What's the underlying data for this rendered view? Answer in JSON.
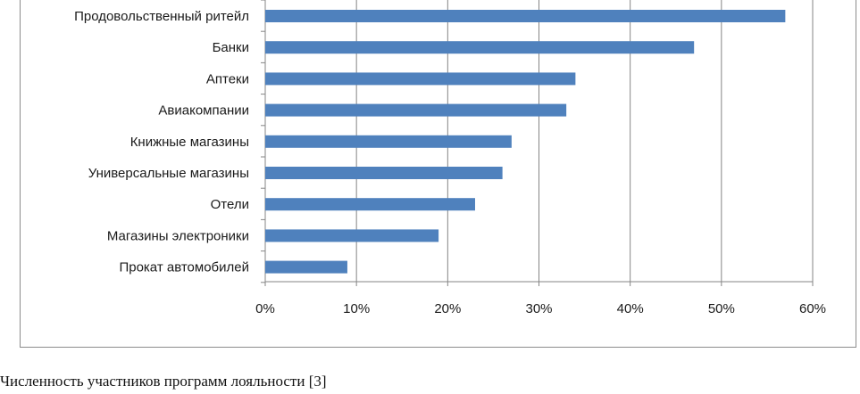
{
  "caption": "Численность участников программ лояльности [3]",
  "colors": {
    "bar": "#4F81BD",
    "gridline": "#868686",
    "axis": "#868686"
  },
  "chart_data": {
    "type": "bar",
    "orientation": "horizontal",
    "categories": [
      "Продовольственный ритейл",
      "Банки",
      "Аптеки",
      "Авиакомпании",
      "Книжные магазины",
      "Универсальные магазины",
      "Отели",
      "Магазины электроники",
      "Прокат автомобилей"
    ],
    "values": [
      57,
      47,
      34,
      33,
      27,
      26,
      23,
      19,
      9
    ],
    "xlim": [
      0,
      60
    ],
    "xticks": [
      0,
      10,
      20,
      30,
      40,
      50,
      60
    ],
    "xtick_labels": [
      "0%",
      "10%",
      "20%",
      "30%",
      "40%",
      "50%",
      "60%"
    ],
    "grid": true,
    "legend": false,
    "title": "",
    "xlabel": "",
    "ylabel": ""
  }
}
